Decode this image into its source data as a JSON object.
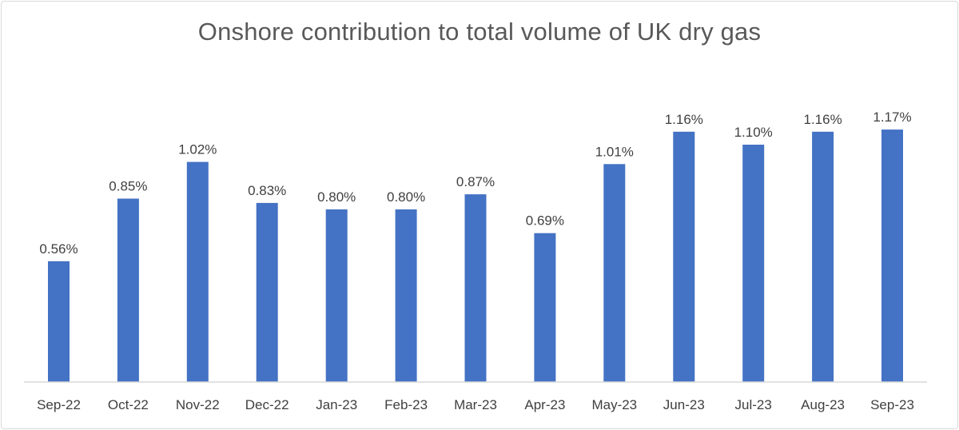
{
  "chart_data": {
    "type": "bar",
    "title": "Onshore contribution to total volume of UK dry gas",
    "xlabel": "",
    "ylabel": "",
    "categories": [
      "Sep-22",
      "Oct-22",
      "Nov-22",
      "Dec-22",
      "Jan-23",
      "Feb-23",
      "Mar-23",
      "Apr-23",
      "May-23",
      "Jun-23",
      "Jul-23",
      "Aug-23",
      "Sep-23"
    ],
    "values": [
      0.56,
      0.85,
      1.02,
      0.83,
      0.8,
      0.8,
      0.87,
      0.69,
      1.01,
      1.16,
      1.1,
      1.16,
      1.17
    ],
    "data_labels": [
      "0.56%",
      "0.85%",
      "1.02%",
      "0.83%",
      "0.80%",
      "0.80%",
      "0.87%",
      "0.69%",
      "1.01%",
      "1.16%",
      "1.10%",
      "1.16%",
      "1.17%"
    ],
    "value_unit": "%",
    "ylim": [
      0,
      1.2
    ],
    "grid": false,
    "legend": "none",
    "bar_color": "#4472c4",
    "axis_color": "#d9d9d9"
  }
}
